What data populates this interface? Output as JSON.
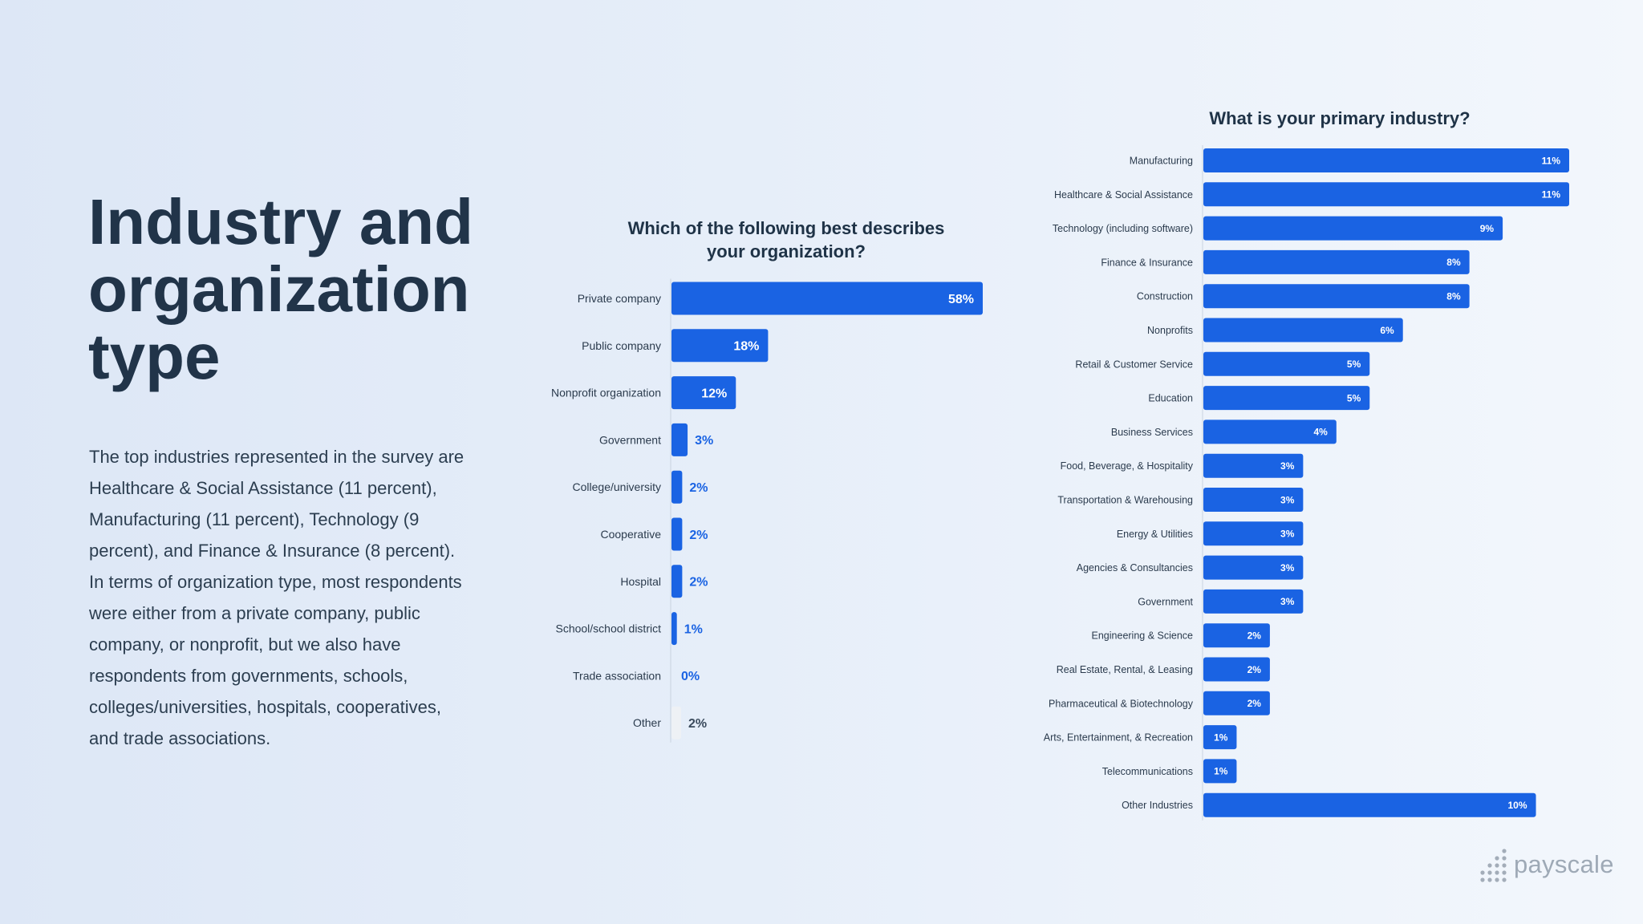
{
  "heading": {
    "lines": [
      "Industry and",
      "organization",
      "type"
    ]
  },
  "description": "The top industries represented in the survey are Healthcare & Social Assistance (11 percent), Manufacturing (11 percent), Technology (9 percent), and Finance & Insurance (8 percent). In terms of organization type, most respondents were either from a private company, public company, or nonprofit, but we also have respondents from governments, schools, colleges/universities, hospitals, cooperatives, and trade associations.",
  "logo": {
    "text": "payscale",
    "icon": "dot-grid-icon"
  },
  "colors": {
    "bar": "#1a63e3",
    "bar_label_inside": "#ffffff",
    "bar_label_outside": "#1a63e3",
    "other_bar": "#eef1f5",
    "other_label": "#3a4a5c"
  },
  "chart_data": [
    {
      "type": "bar",
      "orientation": "horizontal",
      "title": "Which of the following best describes your organization?",
      "categories": [
        "Private company",
        "Public company",
        "Nonprofit organization",
        "Government",
        "College/university",
        "Cooperative",
        "Hospital",
        "School/school district",
        "Trade association",
        "Other"
      ],
      "values": [
        58,
        18,
        12,
        3,
        2,
        2,
        2,
        1,
        0,
        2
      ],
      "value_labels": [
        "58%",
        "18%",
        "12%",
        "3%",
        "2%",
        "2%",
        "2%",
        "1%",
        "0%",
        "2%"
      ],
      "xlim": [
        0,
        58
      ],
      "grid": false,
      "legend": "none"
    },
    {
      "type": "bar",
      "orientation": "horizontal",
      "title": "What is your primary industry?",
      "categories": [
        "Manufacturing",
        "Healthcare & Social Assistance",
        "Technology (including software)",
        "Finance & Insurance",
        "Construction",
        "Nonprofits",
        "Retail & Customer Service",
        "Education",
        "Business Services",
        "Food, Beverage, & Hospitality",
        "Transportation & Warehousing",
        "Energy & Utilities",
        "Agencies & Consultancies",
        "Government",
        "Engineering & Science",
        "Real Estate, Rental, & Leasing",
        "Pharmaceutical & Biotechnology",
        "Arts, Entertainment, & Recreation",
        "Telecommunications",
        "Other Industries"
      ],
      "values": [
        11,
        11,
        9,
        8,
        8,
        6,
        5,
        5,
        4,
        3,
        3,
        3,
        3,
        3,
        2,
        2,
        2,
        1,
        1,
        10
      ],
      "value_labels": [
        "11%",
        "11%",
        "9%",
        "8%",
        "8%",
        "6%",
        "5%",
        "5%",
        "4%",
        "3%",
        "3%",
        "3%",
        "3%",
        "3%",
        "2%",
        "2%",
        "2%",
        "1%",
        "1%",
        "10%"
      ],
      "xlim": [
        0,
        11
      ],
      "grid": false,
      "legend": "none"
    }
  ]
}
